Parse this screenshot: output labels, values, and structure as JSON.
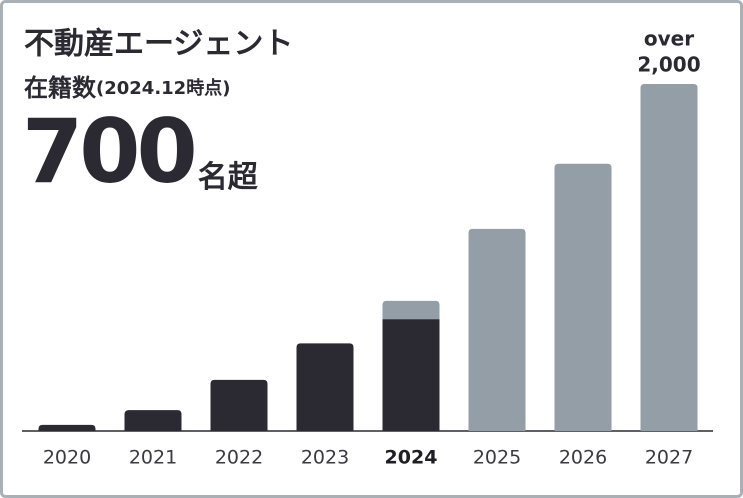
{
  "chart_data": {
    "type": "bar",
    "stacked": true,
    "title": "不動産エージェント",
    "subtitle": "在籍数",
    "subtitle_note": "(2024.12時点)",
    "headline": {
      "value": 700,
      "unit": "名超"
    },
    "annotation": "over",
    "categories": [
      "2020",
      "2021",
      "2022",
      "2023",
      "2024",
      "2025",
      "2026",
      "2027"
    ],
    "highlight_category": 4,
    "series": [
      {
        "color": "#2b2a33",
        "values": [
          35,
          120,
          295,
          505,
          645,
          null,
          null,
          null
        ]
      },
      {
        "color": "#939ea6",
        "values": [
          null,
          null,
          null,
          null,
          105,
          1165,
          1540,
          2000
        ],
        "value_labels": [
          null,
          null,
          null,
          null,
          null,
          null,
          null,
          "2,000"
        ]
      }
    ]
  }
}
